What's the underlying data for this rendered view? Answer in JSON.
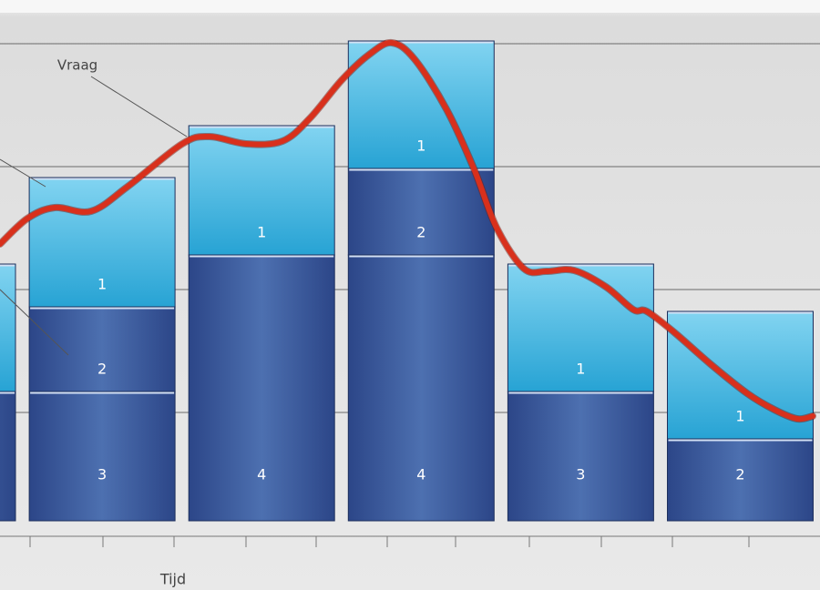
{
  "chart_data": {
    "type": "stacked-bar",
    "x_label": "Tijd",
    "xlim": [
      0,
      900
    ],
    "ylim": [
      0,
      572
    ],
    "yticks": [
      119,
      254,
      389,
      524
    ],
    "grid": true,
    "stacks": [
      {
        "values": [
          142,
          140
        ],
        "labels": [
          null,
          null
        ]
      },
      {
        "values": [
          142,
          93,
          142
        ],
        "labels": [
          "3",
          "2",
          "1"
        ]
      },
      {
        "values": [
          292,
          142
        ],
        "labels": [
          "4",
          "1"
        ]
      },
      {
        "values": [
          292,
          95,
          140
        ],
        "labels": [
          "4",
          "2",
          "1"
        ]
      },
      {
        "values": [
          142,
          140
        ],
        "labels": [
          "3",
          "1"
        ]
      },
      {
        "values": [
          90,
          140
        ],
        "labels": [
          "2",
          "1"
        ]
      }
    ],
    "line": {
      "name": "Vraag",
      "color": "#d8301c",
      "x": [
        0,
        30,
        60,
        100,
        140,
        200,
        230,
        270,
        310,
        340,
        375,
        405,
        430,
        455,
        490,
        520,
        545,
        575,
        600,
        630,
        665,
        695,
        710,
        740,
        780,
        820,
        850,
        875,
        892
      ],
      "values": [
        304,
        332,
        344,
        340,
        367,
        414,
        422,
        414,
        417,
        442,
        484,
        512,
        525,
        507,
        452,
        387,
        322,
        277,
        274,
        275,
        257,
        232,
        230,
        207,
        172,
        140,
        122,
        112,
        115
      ]
    }
  }
}
